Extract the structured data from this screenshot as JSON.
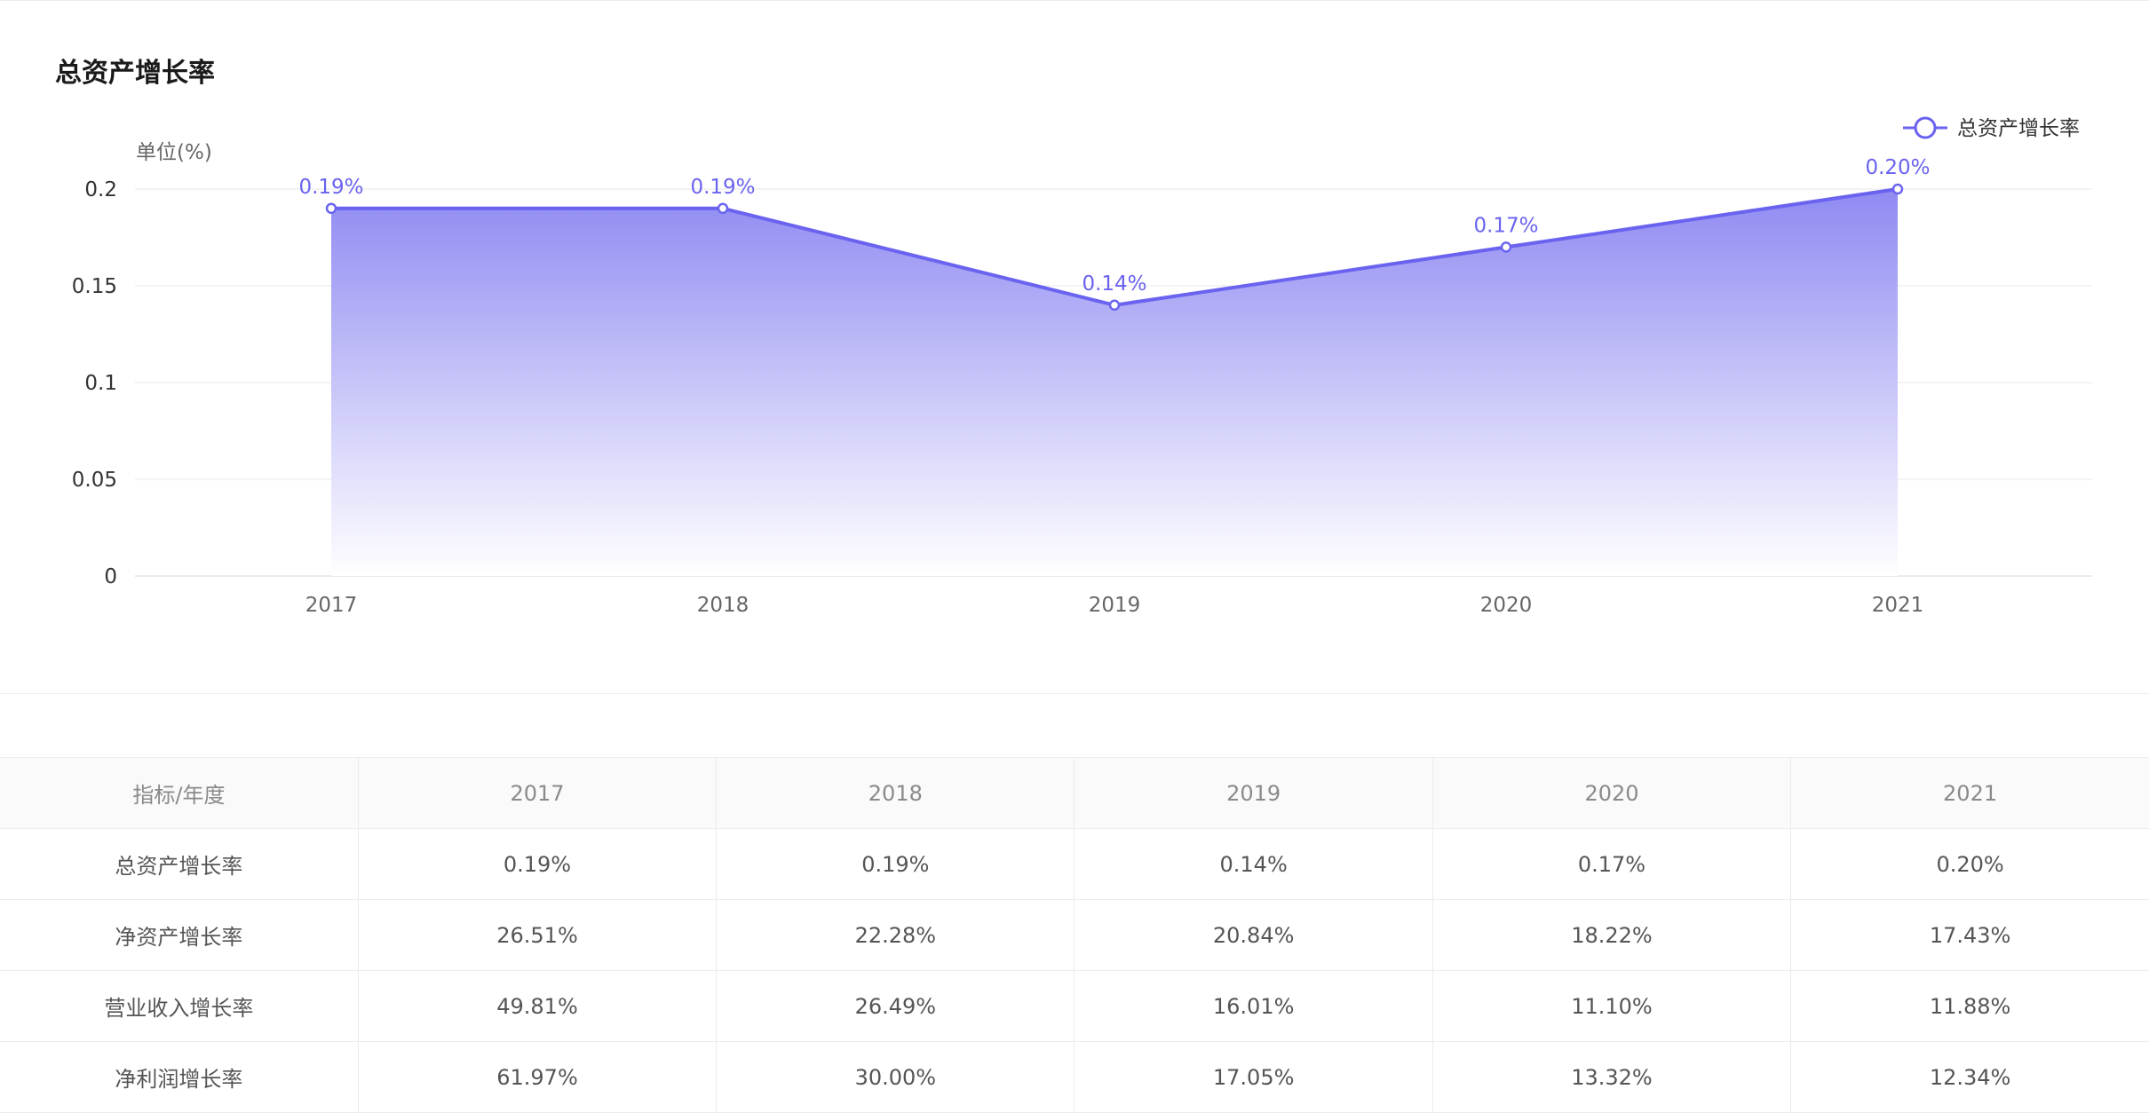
{
  "chart_title": "总资产增长率",
  "chart_data": {
    "type": "area",
    "title": "总资产增长率",
    "unit_label": "单位(%)",
    "categories": [
      "2017",
      "2018",
      "2019",
      "2020",
      "2021"
    ],
    "series": [
      {
        "name": "总资产增长率",
        "values": [
          0.19,
          0.19,
          0.14,
          0.17,
          0.2
        ],
        "data_labels": [
          "0.19%",
          "0.19%",
          "0.14%",
          "0.17%",
          "0.20%"
        ]
      }
    ],
    "y_ticks": [
      "0",
      "0.05",
      "0.1",
      "0.15",
      "0.2"
    ],
    "ylim": [
      0,
      0.2
    ],
    "grid": true,
    "legend_position": "top-right",
    "line_color": "#6a63ef",
    "fill_top_color": "#8f8af2",
    "fill_bottom_color": "#ffffff"
  },
  "table": {
    "headers": [
      "指标/年度",
      "2017",
      "2018",
      "2019",
      "2020",
      "2021"
    ],
    "rows": [
      [
        "总资产增长率",
        "0.19%",
        "0.19%",
        "0.14%",
        "0.17%",
        "0.20%"
      ],
      [
        "净资产增长率",
        "26.51%",
        "22.28%",
        "20.84%",
        "18.22%",
        "17.43%"
      ],
      [
        "营业收入增长率",
        "49.81%",
        "26.49%",
        "16.01%",
        "11.10%",
        "11.88%"
      ],
      [
        "净利润增长率",
        "61.97%",
        "30.00%",
        "17.05%",
        "13.32%",
        "12.34%"
      ]
    ]
  }
}
